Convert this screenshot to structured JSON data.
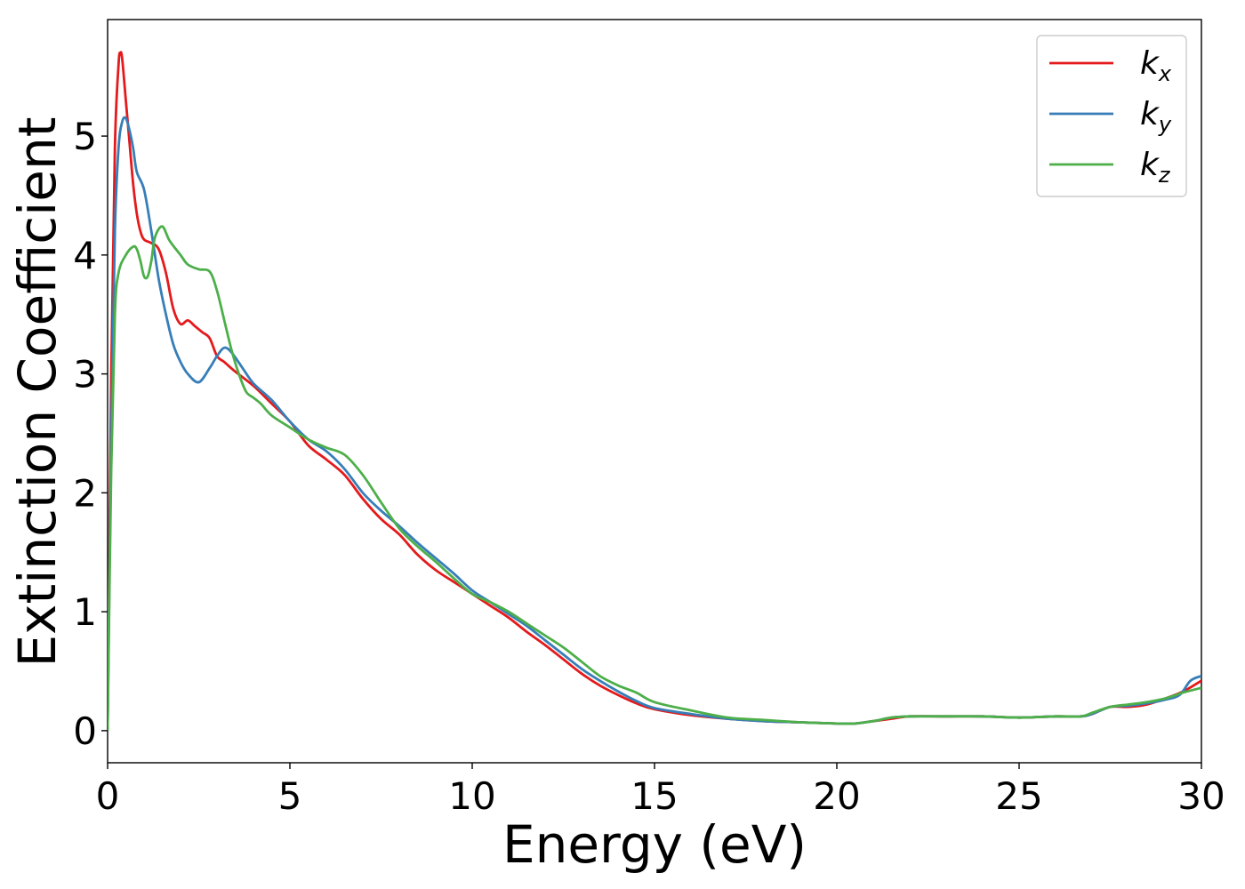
{
  "chart_data": {
    "type": "line",
    "title": "",
    "xlabel": "Energy (eV)",
    "ylabel": "Extinction Coefficient",
    "xlim": [
      0,
      30
    ],
    "ylim": [
      -0.27,
      5.98
    ],
    "xticks": [
      0,
      5,
      10,
      15,
      20,
      25,
      30
    ],
    "yticks": [
      0,
      1,
      2,
      3,
      4,
      5
    ],
    "xtick_labels": [
      "0",
      "5",
      "10",
      "15",
      "20",
      "25",
      "30"
    ],
    "ytick_labels": [
      "0",
      "1",
      "2",
      "3",
      "4",
      "5"
    ],
    "grid": false,
    "legend": "top-right",
    "series": [
      {
        "name": "k_x",
        "color": "#e41a1c",
        "points": [
          [
            0,
            0
          ],
          [
            0.1,
            3.0
          ],
          [
            0.2,
            4.9
          ],
          [
            0.3,
            5.6
          ],
          [
            0.35,
            5.7
          ],
          [
            0.4,
            5.65
          ],
          [
            0.5,
            5.3
          ],
          [
            0.6,
            4.95
          ],
          [
            0.7,
            4.6
          ],
          [
            0.8,
            4.35
          ],
          [
            0.9,
            4.2
          ],
          [
            1.0,
            4.13
          ],
          [
            1.2,
            4.1
          ],
          [
            1.4,
            4.05
          ],
          [
            1.6,
            3.85
          ],
          [
            1.8,
            3.55
          ],
          [
            2.0,
            3.42
          ],
          [
            2.2,
            3.45
          ],
          [
            2.4,
            3.4
          ],
          [
            2.6,
            3.35
          ],
          [
            2.8,
            3.3
          ],
          [
            3.0,
            3.15
          ],
          [
            3.2,
            3.1
          ],
          [
            3.5,
            3.02
          ],
          [
            4.0,
            2.9
          ],
          [
            4.5,
            2.75
          ],
          [
            5.0,
            2.6
          ],
          [
            5.5,
            2.4
          ],
          [
            6.0,
            2.28
          ],
          [
            6.5,
            2.15
          ],
          [
            7.0,
            1.95
          ],
          [
            7.5,
            1.78
          ],
          [
            8.0,
            1.65
          ],
          [
            8.5,
            1.48
          ],
          [
            9.0,
            1.35
          ],
          [
            9.5,
            1.25
          ],
          [
            10.0,
            1.15
          ],
          [
            10.5,
            1.05
          ],
          [
            11.0,
            0.95
          ],
          [
            11.5,
            0.83
          ],
          [
            12.0,
            0.72
          ],
          [
            12.5,
            0.6
          ],
          [
            13.0,
            0.48
          ],
          [
            13.5,
            0.38
          ],
          [
            14.0,
            0.3
          ],
          [
            14.5,
            0.23
          ],
          [
            15.0,
            0.18
          ],
          [
            16.0,
            0.13
          ],
          [
            17.0,
            0.1
          ],
          [
            18.0,
            0.08
          ],
          [
            19.0,
            0.07
          ],
          [
            20.0,
            0.06
          ],
          [
            20.5,
            0.06
          ],
          [
            21.0,
            0.08
          ],
          [
            21.5,
            0.1
          ],
          [
            22.0,
            0.12
          ],
          [
            23.0,
            0.12
          ],
          [
            24.0,
            0.12
          ],
          [
            25.0,
            0.11
          ],
          [
            26.0,
            0.12
          ],
          [
            26.7,
            0.12
          ],
          [
            27.0,
            0.14
          ],
          [
            27.5,
            0.2
          ],
          [
            28.0,
            0.2
          ],
          [
            28.5,
            0.22
          ],
          [
            29.0,
            0.27
          ],
          [
            29.5,
            0.33
          ],
          [
            30.0,
            0.42
          ]
        ]
      },
      {
        "name": "k_y",
        "color": "#377eb8",
        "points": [
          [
            0,
            0
          ],
          [
            0.1,
            2.5
          ],
          [
            0.2,
            4.2
          ],
          [
            0.3,
            4.9
          ],
          [
            0.4,
            5.12
          ],
          [
            0.5,
            5.15
          ],
          [
            0.6,
            5.05
          ],
          [
            0.7,
            4.9
          ],
          [
            0.8,
            4.7
          ],
          [
            1.0,
            4.55
          ],
          [
            1.2,
            4.2
          ],
          [
            1.4,
            3.8
          ],
          [
            1.6,
            3.5
          ],
          [
            1.8,
            3.25
          ],
          [
            2.0,
            3.1
          ],
          [
            2.2,
            3.0
          ],
          [
            2.5,
            2.93
          ],
          [
            2.8,
            3.05
          ],
          [
            3.0,
            3.15
          ],
          [
            3.2,
            3.22
          ],
          [
            3.4,
            3.18
          ],
          [
            3.7,
            3.05
          ],
          [
            4.0,
            2.92
          ],
          [
            4.5,
            2.78
          ],
          [
            5.0,
            2.6
          ],
          [
            5.5,
            2.45
          ],
          [
            6.0,
            2.35
          ],
          [
            6.5,
            2.2
          ],
          [
            7.0,
            2.0
          ],
          [
            7.5,
            1.85
          ],
          [
            8.0,
            1.72
          ],
          [
            8.5,
            1.58
          ],
          [
            9.0,
            1.45
          ],
          [
            9.5,
            1.32
          ],
          [
            10.0,
            1.18
          ],
          [
            10.5,
            1.08
          ],
          [
            11.0,
            0.98
          ],
          [
            11.5,
            0.88
          ],
          [
            12.0,
            0.76
          ],
          [
            12.5,
            0.64
          ],
          [
            13.0,
            0.52
          ],
          [
            13.5,
            0.42
          ],
          [
            14.0,
            0.33
          ],
          [
            14.5,
            0.25
          ],
          [
            15.0,
            0.19
          ],
          [
            16.0,
            0.14
          ],
          [
            17.0,
            0.1
          ],
          [
            18.0,
            0.08
          ],
          [
            19.0,
            0.07
          ],
          [
            20.0,
            0.06
          ],
          [
            20.5,
            0.06
          ],
          [
            21.0,
            0.08
          ],
          [
            21.5,
            0.11
          ],
          [
            22.0,
            0.12
          ],
          [
            23.0,
            0.12
          ],
          [
            24.0,
            0.12
          ],
          [
            25.0,
            0.11
          ],
          [
            26.0,
            0.12
          ],
          [
            26.7,
            0.12
          ],
          [
            27.0,
            0.14
          ],
          [
            27.5,
            0.2
          ],
          [
            28.0,
            0.21
          ],
          [
            28.5,
            0.23
          ],
          [
            29.0,
            0.26
          ],
          [
            29.4,
            0.3
          ],
          [
            29.7,
            0.42
          ],
          [
            30.0,
            0.46
          ]
        ]
      },
      {
        "name": "k_z",
        "color": "#4daf4a",
        "points": [
          [
            0,
            0
          ],
          [
            0.1,
            2.2
          ],
          [
            0.2,
            3.5
          ],
          [
            0.3,
            3.85
          ],
          [
            0.5,
            4.0
          ],
          [
            0.7,
            4.07
          ],
          [
            0.8,
            4.05
          ],
          [
            0.9,
            3.95
          ],
          [
            1.0,
            3.82
          ],
          [
            1.1,
            3.82
          ],
          [
            1.2,
            3.95
          ],
          [
            1.3,
            4.15
          ],
          [
            1.5,
            4.24
          ],
          [
            1.7,
            4.12
          ],
          [
            2.0,
            4.0
          ],
          [
            2.2,
            3.92
          ],
          [
            2.5,
            3.88
          ],
          [
            2.8,
            3.86
          ],
          [
            3.0,
            3.7
          ],
          [
            3.2,
            3.45
          ],
          [
            3.4,
            3.2
          ],
          [
            3.6,
            3.0
          ],
          [
            3.8,
            2.85
          ],
          [
            4.0,
            2.8
          ],
          [
            4.2,
            2.75
          ],
          [
            4.5,
            2.65
          ],
          [
            5.0,
            2.55
          ],
          [
            5.5,
            2.45
          ],
          [
            6.0,
            2.38
          ],
          [
            6.5,
            2.32
          ],
          [
            7.0,
            2.15
          ],
          [
            7.5,
            1.92
          ],
          [
            8.0,
            1.7
          ],
          [
            8.5,
            1.55
          ],
          [
            9.0,
            1.42
          ],
          [
            9.5,
            1.28
          ],
          [
            10.0,
            1.15
          ],
          [
            10.5,
            1.08
          ],
          [
            11.0,
            1.0
          ],
          [
            11.5,
            0.9
          ],
          [
            12.0,
            0.8
          ],
          [
            12.5,
            0.7
          ],
          [
            13.0,
            0.58
          ],
          [
            13.5,
            0.46
          ],
          [
            14.0,
            0.38
          ],
          [
            14.5,
            0.32
          ],
          [
            15.0,
            0.24
          ],
          [
            16.0,
            0.17
          ],
          [
            17.0,
            0.11
          ],
          [
            18.0,
            0.09
          ],
          [
            19.0,
            0.07
          ],
          [
            20.0,
            0.06
          ],
          [
            20.5,
            0.06
          ],
          [
            21.0,
            0.08
          ],
          [
            21.5,
            0.11
          ],
          [
            22.0,
            0.12
          ],
          [
            23.0,
            0.12
          ],
          [
            24.0,
            0.12
          ],
          [
            25.0,
            0.11
          ],
          [
            26.0,
            0.12
          ],
          [
            26.7,
            0.12
          ],
          [
            27.0,
            0.15
          ],
          [
            27.5,
            0.2
          ],
          [
            28.0,
            0.22
          ],
          [
            28.5,
            0.24
          ],
          [
            29.0,
            0.27
          ],
          [
            29.5,
            0.32
          ],
          [
            30.0,
            0.36
          ]
        ]
      }
    ],
    "legend_entries": [
      {
        "base": "k",
        "sub": "x",
        "color": "#e41a1c"
      },
      {
        "base": "k",
        "sub": "y",
        "color": "#377eb8"
      },
      {
        "base": "k",
        "sub": "z",
        "color": "#4daf4a"
      }
    ]
  }
}
